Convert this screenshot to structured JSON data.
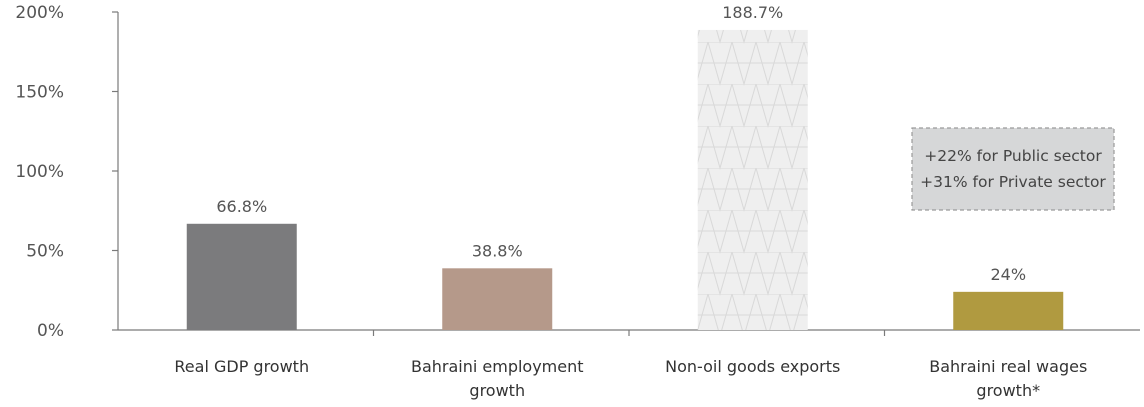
{
  "chart_data": {
    "type": "bar",
    "categories": [
      [
        "Real GDP growth"
      ],
      [
        "Bahraini employment",
        "growth"
      ],
      [
        "Non-oil goods exports"
      ],
      [
        "Bahraini real wages",
        "growth*"
      ]
    ],
    "values": [
      66.8,
      38.8,
      188.7,
      24
    ],
    "value_labels": [
      "66.8%",
      "38.8%",
      "188.7%",
      "24%"
    ],
    "bar_colors": [
      "#7b7b7d",
      "#b5998a",
      "#efefef",
      "#b09a40"
    ],
    "bar_patterns": [
      "solid",
      "solid",
      "lattice",
      "solid"
    ],
    "ylim": [
      0,
      200
    ],
    "yticks": [
      0,
      50,
      100,
      150,
      200
    ],
    "ytick_labels": [
      "0%",
      "50%",
      "100%",
      "150%",
      "200%"
    ],
    "title": "",
    "xlabel": "",
    "ylabel": "",
    "grid": false,
    "annotation": {
      "category_index": 3,
      "lines": [
        "+22% for Public sector",
        "+31% for Private sector"
      ],
      "fill": "#d6d7d8",
      "border": "#9a9a9a"
    }
  }
}
